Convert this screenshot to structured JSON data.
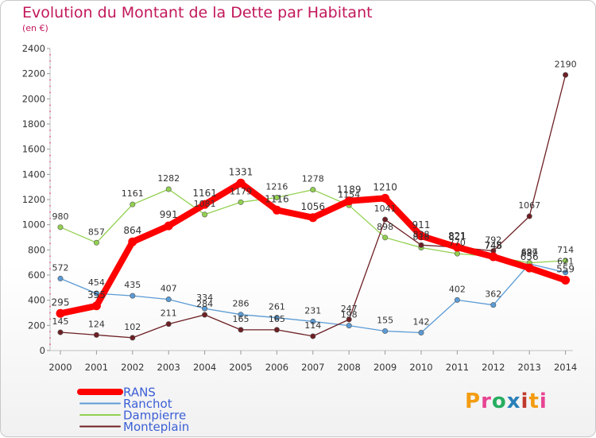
{
  "header": {
    "title": "Evolution du Montant de la Dette par Habitant",
    "unit": "(en €)"
  },
  "logo": {
    "text": "Proxiti",
    "colors": [
      "#f39c12",
      "#e84393",
      "#27ae60",
      "#2980b9",
      "#c0392b"
    ]
  },
  "chart_data": {
    "type": "line",
    "title": "Evolution du Montant de la Dette par Habitant",
    "ylabel": "(en €)",
    "xlabel": "",
    "ylim": [
      0,
      2400
    ],
    "yticks": [
      0,
      200,
      400,
      600,
      800,
      1000,
      1200,
      1400,
      1600,
      1800,
      2000,
      2200,
      2400
    ],
    "grid": false,
    "legend_position": "bottom-left",
    "categories": [
      "2000",
      "2001",
      "2002",
      "2003",
      "2004",
      "2005",
      "2006",
      "2007",
      "2008",
      "2009",
      "2010",
      "2011",
      "2012",
      "2013",
      "2014"
    ],
    "series": [
      {
        "name": "Ranchot",
        "color": "#5b9bd5",
        "values": [
          572,
          454,
          435,
          407,
          334,
          286,
          261,
          231,
          198,
          155,
          142,
          402,
          362,
          689,
          621
        ],
        "labels": [
          "572",
          "454",
          "435",
          "407",
          "334",
          "286",
          "261",
          "231",
          "198",
          "155",
          "142",
          "402",
          "362",
          "689",
          "621"
        ]
      },
      {
        "name": "Dampierre",
        "color": "#92d050",
        "values": [
          980,
          857,
          1161,
          1282,
          1081,
          1179,
          1216,
          1278,
          1154,
          898,
          818,
          770,
          748,
          697,
          714
        ],
        "labels": [
          "980",
          "857",
          "1161",
          "1282",
          "1081",
          "1179",
          "1216",
          "1278",
          "1154",
          "898",
          "818",
          "770",
          "748",
          "697",
          "714"
        ]
      },
      {
        "name": "Monteplain",
        "color": "#6d1f24",
        "values": [
          145,
          124,
          102,
          211,
          284,
          165,
          165,
          114,
          247,
          1041,
          838,
          821,
          792,
          1067,
          2190
        ],
        "labels": [
          "145",
          "124",
          "102",
          "211",
          "284",
          "165",
          "165",
          "114",
          "247",
          "1041",
          "838",
          "821",
          "792",
          "1067",
          "2190"
        ]
      },
      {
        "name": "RANS",
        "color": "#ff0000",
        "values": [
          295,
          355,
          864,
          991,
          1161,
          1331,
          1116,
          1056,
          1189,
          1210,
          911,
          821,
          745,
          656,
          559
        ],
        "labels": [
          "295",
          "355",
          "864",
          "991",
          "1161",
          "1331",
          "1116",
          "1056",
          "1189",
          "1210",
          "911",
          "821",
          "745",
          "656",
          "559"
        ]
      }
    ],
    "legend": [
      "RANS",
      "Ranchot",
      "Dampierre",
      "Monteplain"
    ]
  }
}
